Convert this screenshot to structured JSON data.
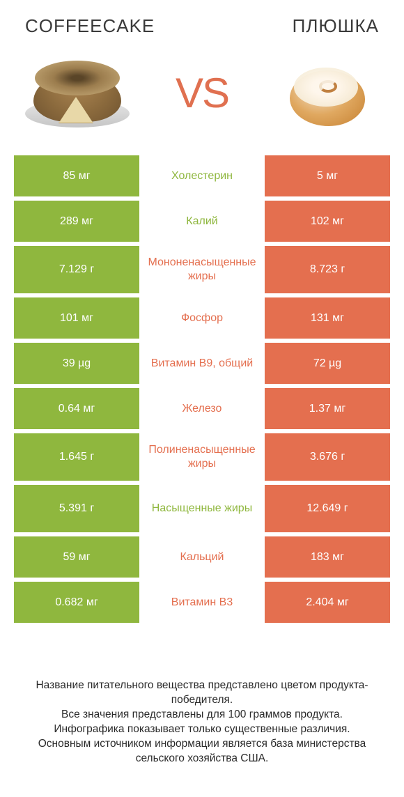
{
  "colors": {
    "green": "#8fb73e",
    "orange": "#e46f4f",
    "vs": "#e07050",
    "title": "#3a3a3a"
  },
  "fonts": {
    "title_size": 26,
    "vs_size": 60,
    "cell_size": 16,
    "footer_size": 15.5
  },
  "header": {
    "left": "COFFEECAKE",
    "right": "ПЛЮШКА",
    "vs": "VS"
  },
  "rows": [
    {
      "left": "85 мг",
      "mid": "Холестерин",
      "right": "5 мг",
      "winner": "left",
      "tall": false
    },
    {
      "left": "289 мг",
      "mid": "Калий",
      "right": "102 мг",
      "winner": "left",
      "tall": false
    },
    {
      "left": "7.129 г",
      "mid": "Мононенасыщенные жиры",
      "right": "8.723 г",
      "winner": "right",
      "tall": true
    },
    {
      "left": "101 мг",
      "mid": "Фосфор",
      "right": "131 мг",
      "winner": "right",
      "tall": false
    },
    {
      "left": "39 µg",
      "mid": "Витамин B9, общий",
      "right": "72 µg",
      "winner": "right",
      "tall": false
    },
    {
      "left": "0.64 мг",
      "mid": "Железо",
      "right": "1.37 мг",
      "winner": "right",
      "tall": false
    },
    {
      "left": "1.645 г",
      "mid": "Полиненасыщенные жиры",
      "right": "3.676 г",
      "winner": "right",
      "tall": true
    },
    {
      "left": "5.391 г",
      "mid": "Насыщенные жиры",
      "right": "12.649 г",
      "winner": "left",
      "tall": true
    },
    {
      "left": "59 мг",
      "mid": "Кальций",
      "right": "183 мг",
      "winner": "right",
      "tall": false
    },
    {
      "left": "0.682 мг",
      "mid": "Витамин B3",
      "right": "2.404 мг",
      "winner": "right",
      "tall": false
    }
  ],
  "footer": {
    "l1": "Название питательного вещества представлено цветом продукта-победителя.",
    "l2": "Все значения представлены для 100 граммов продукта.",
    "l3": "Инфографика показывает только существенные различия.",
    "l4": "Основным источником информации является база министерства сельского хозяйства США."
  }
}
